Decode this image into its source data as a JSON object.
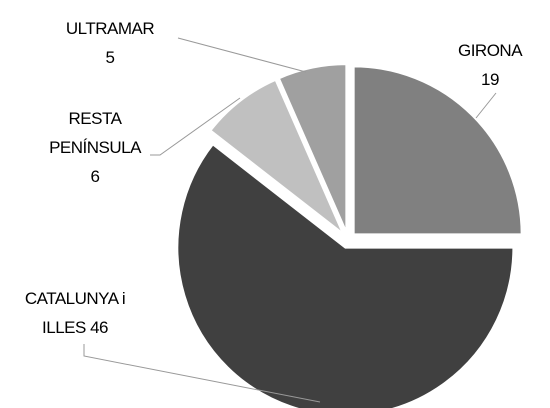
{
  "chart_data": {
    "type": "pie",
    "categories": [
      "GIRONA",
      "CATALUNYA i ILLES",
      "RESTA PENÍNSULA",
      "ULTRAMAR"
    ],
    "values": [
      19,
      46,
      6,
      5
    ],
    "colors": [
      "#808080",
      "#404040",
      "#c0c0c0",
      "#a0a0a0"
    ]
  }
}
